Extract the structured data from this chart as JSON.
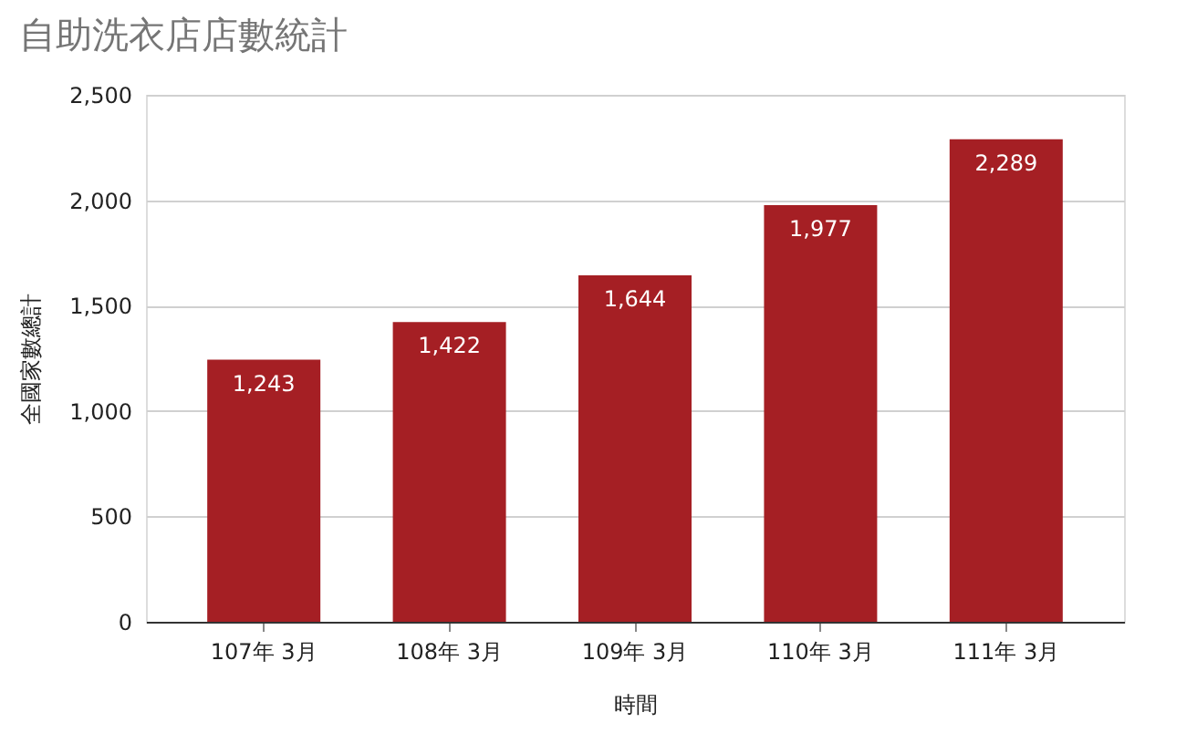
{
  "chart_data": {
    "type": "bar",
    "title": "自助洗衣店店數統計",
    "xlabel": "時間",
    "ylabel": "全國家數總計",
    "categories": [
      "107年 3月",
      "108年 3月",
      "109年 3月",
      "110年 3月",
      "111年 3月"
    ],
    "values": [
      1243,
      1422,
      1644,
      1977,
      2289
    ],
    "value_labels": [
      "1,243",
      "1,422",
      "1,644",
      "1,977",
      "2,289"
    ],
    "color": "#a51f24",
    "ylim": [
      0,
      2500
    ],
    "yticks": [
      0,
      {
        "value": 500,
        "label": "500"
      },
      {
        "value": 1000,
        "label": "1,000"
      },
      {
        "value": 1500,
        "label": "1,500"
      },
      {
        "value": 2000,
        "label": "2,000"
      },
      {
        "value": 2500,
        "label": "2,500"
      }
    ],
    "grid": "y"
  }
}
